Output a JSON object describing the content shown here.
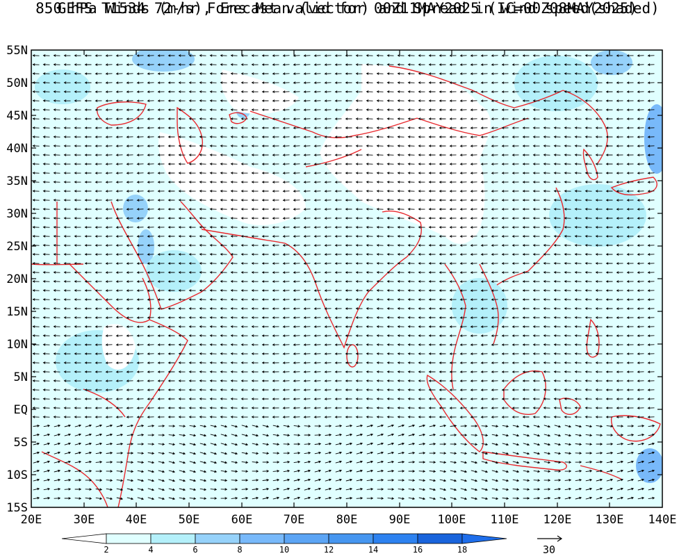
{
  "title_line1": "GEFS T1534 72-hr Forecast valid for 00Z11MAY2025 (IC=00Z08MAY2025)",
  "title_line2": "850 hPa Winds (m/s), Ens Mean (vector) and Spread in wind speed(shaded)",
  "lat_labels": [
    "55N",
    "50N",
    "45N",
    "40N",
    "35N",
    "30N",
    "25N",
    "20N",
    "15N",
    "10N",
    "5N",
    "EQ",
    "5S",
    "10S",
    "15S"
  ],
  "lon_labels": [
    "20E",
    "30E",
    "40E",
    "50E",
    "60E",
    "70E",
    "80E",
    "90E",
    "100E",
    "110E",
    "120E",
    "130E",
    "140E"
  ],
  "colorbar": {
    "ticks": [
      "2",
      "4",
      "6",
      "8",
      "10",
      "12",
      "14",
      "16",
      "18"
    ],
    "colors": [
      "#ffffff",
      "#e0ffff",
      "#b4f0fa",
      "#96d2fa",
      "#78b9fa",
      "#5ca5f5",
      "#4696f0",
      "#2d82f0",
      "#1964dc",
      "#1e6eeb"
    ]
  },
  "reference_vector": {
    "label": "30"
  },
  "colors": {
    "coastline": "#e8282d",
    "land_white": "#ffffff",
    "ocean_base": "#e0ffff"
  }
}
